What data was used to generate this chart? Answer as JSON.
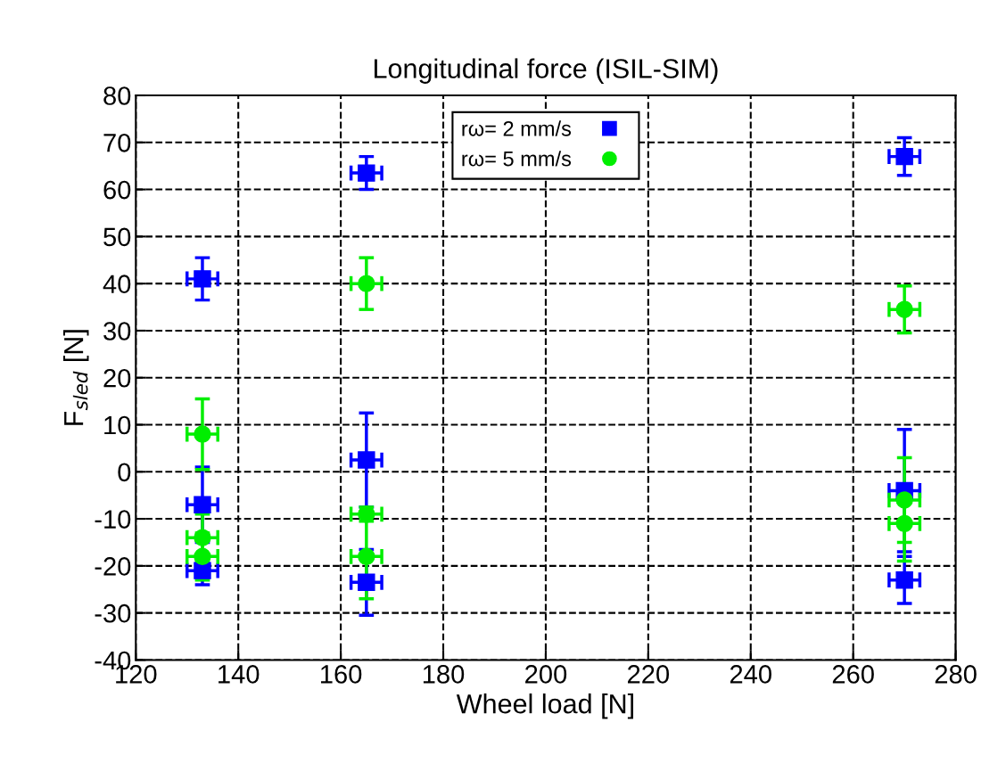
{
  "chart_data": {
    "type": "scatter",
    "title": "Longitudinal force (ISIL-SIM)",
    "xlabel": "Wheel load [N]",
    "ylabel": "F$_{sled}$ [N]",
    "xlim": [
      120,
      280
    ],
    "xticks": [
      120,
      140,
      160,
      180,
      200,
      220,
      240,
      260,
      280
    ],
    "ylim": [
      -40,
      80
    ],
    "yticks": [
      -40,
      -30,
      -20,
      -10,
      0,
      10,
      20,
      30,
      40,
      50,
      60,
      70,
      80
    ],
    "grid": true,
    "legend": "top",
    "line_style": "dashed",
    "series": [
      {
        "name": "rω= 2 mm/s",
        "color": "#0000ff",
        "marker": "square",
        "x": [
          133,
          133,
          133,
          165,
          165,
          165,
          270,
          270,
          270
        ],
        "values": [
          41,
          -7,
          -21,
          63.5,
          2.5,
          -23.5,
          67,
          -4,
          -23
        ],
        "errors": [
          4.5,
          8,
          3,
          3.5,
          10,
          7,
          4,
          13,
          5
        ],
        "xerrors": [
          3,
          3,
          3,
          3,
          3,
          3,
          3,
          3,
          3
        ]
      },
      {
        "name": "rω= 5 mm/s",
        "color": "#00ee00",
        "marker": "circle",
        "x": [
          133,
          133,
          133,
          165,
          165,
          165,
          270,
          270,
          270
        ],
        "values": [
          8,
          -14,
          -18,
          40,
          -9,
          -18,
          34.5,
          -6,
          -11
        ],
        "errors": [
          7.5,
          5,
          5,
          5.5,
          1.5,
          9,
          5,
          9,
          8
        ],
        "xerrors": [
          3,
          3,
          3,
          3,
          3,
          3,
          3,
          3,
          3
        ]
      }
    ]
  }
}
